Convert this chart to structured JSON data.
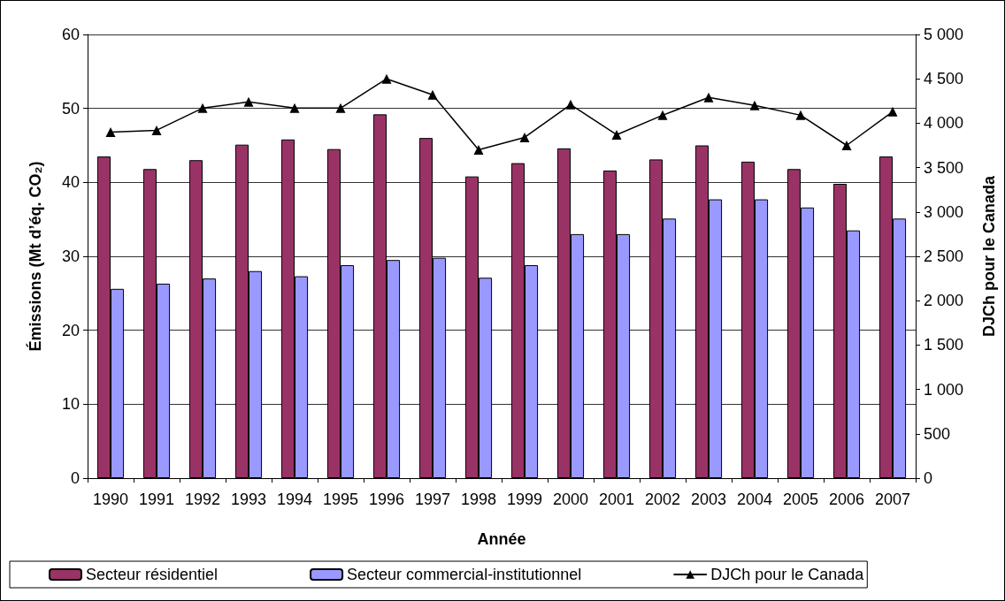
{
  "chart_data": {
    "type": "bar",
    "categories": [
      "1990",
      "1991",
      "1992",
      "1993",
      "1994",
      "1995",
      "1996",
      "1997",
      "1998",
      "1999",
      "2000",
      "2001",
      "2002",
      "2003",
      "2004",
      "2005",
      "2006",
      "2007"
    ],
    "xlabel": "Année",
    "ylabel": "Émissions (Mt d’éq. CO₂)",
    "y2label": "DJCh pour le Canada",
    "ylim": [
      0,
      60
    ],
    "yticks": [
      0,
      10,
      20,
      30,
      40,
      50,
      60
    ],
    "y2lim": [
      0,
      5000
    ],
    "y2ticks": [
      0,
      500,
      {
        "value": 1000,
        "label": "1 000"
      },
      {
        "value": 1500,
        "label": "1 500"
      },
      {
        "value": 2000,
        "label": "2 000"
      },
      {
        "value": 2500,
        "label": "2 500"
      },
      {
        "value": 3000,
        "label": "3 000"
      },
      {
        "value": 3500,
        "label": "3 500"
      },
      {
        "value": 4000,
        "label": "4 000"
      },
      {
        "value": 4500,
        "label": "4 500"
      },
      {
        "value": 5000,
        "label": "5 000"
      }
    ],
    "grid": "y",
    "legend": "bottom",
    "marker": "triangle",
    "line_style": "solid",
    "series": [
      {
        "name": "Secteur résidentiel",
        "color": "#993366",
        "values": [
          43.5,
          41.8,
          43.0,
          45.1,
          45.8,
          44.5,
          49.2,
          46.0,
          40.8,
          42.6,
          44.6,
          41.6,
          43.1,
          45.0,
          42.8,
          41.8,
          39.8,
          43.5
        ]
      },
      {
        "name": "Secteur commercial-institutionnel",
        "color": "#9999ff",
        "values": [
          25.6,
          26.3,
          27.0,
          28.0,
          27.3,
          28.8,
          29.5,
          29.8,
          27.1,
          28.8,
          33.0,
          33.0,
          35.1,
          37.7,
          37.7,
          36.6,
          33.5,
          35.1
        ]
      },
      {
        "name": "DJCh pour le Canada",
        "type": "line",
        "axis": "y2",
        "color": "#000000",
        "values": [
          3900,
          3920,
          4170,
          4240,
          4170,
          4170,
          4500,
          4320,
          3700,
          3840,
          4210,
          3870,
          4090,
          4290,
          4200,
          4090,
          3750,
          4130
        ]
      }
    ]
  }
}
